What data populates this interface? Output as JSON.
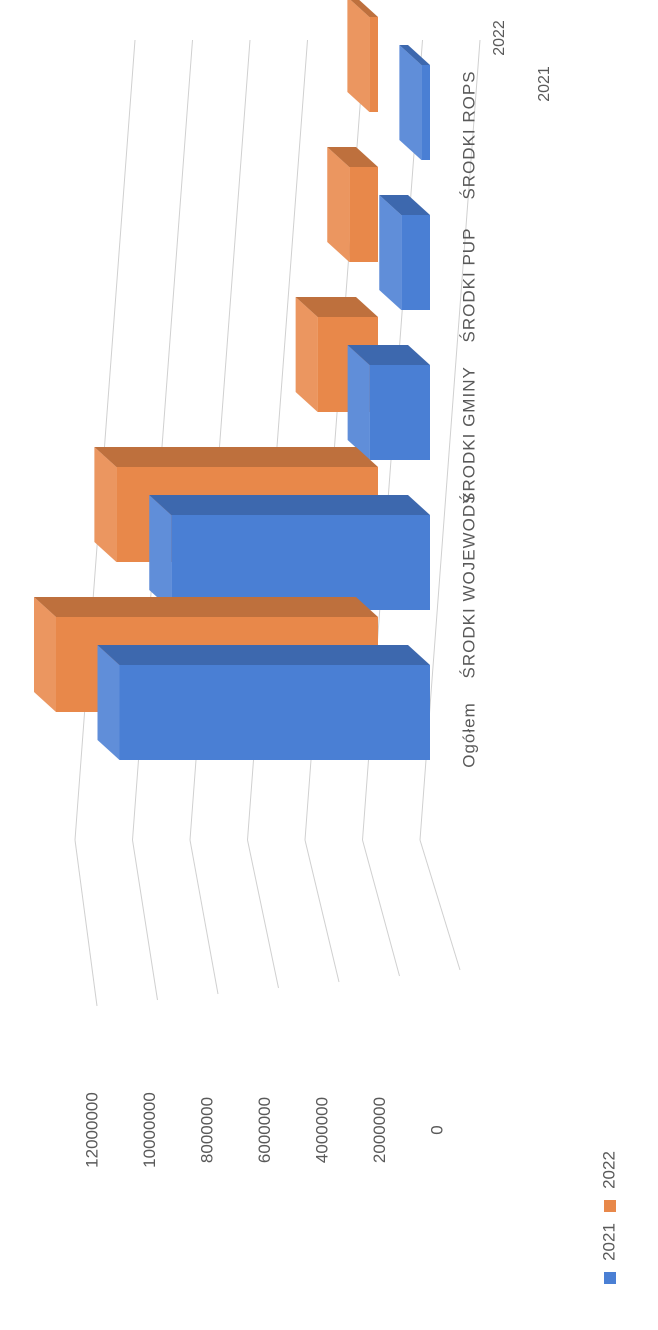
{
  "chart_data": {
    "type": "bar",
    "categories": [
      "Ogółem",
      "ŚRODKI WOJEWODY",
      "ŚRODKI GMINY",
      "ŚRODKI PUP",
      "ŚRODKI ROPS"
    ],
    "series": [
      {
        "name": "2021",
        "values": [
          10800000,
          9000000,
          2100000,
          1000000,
          300000
        ],
        "color": "#4a7fd4"
      },
      {
        "name": "2022",
        "values": [
          11200000,
          9100000,
          2100000,
          1000000,
          300000
        ],
        "color": "#e8884a"
      }
    ],
    "depth_labels": [
      "2022",
      "2021"
    ],
    "y_ticks": [
      "0",
      "2000000",
      "4000000",
      "6000000",
      "8000000",
      "10000000",
      "12000000"
    ],
    "ylim": [
      0,
      12000000
    ],
    "grid": true,
    "legend_position": "bottom",
    "legend_entries": [
      "2021",
      "2022"
    ],
    "chart_style": "3d-column",
    "orientation": "rotated-90-clockwise",
    "palette": {
      "blue": "#4a7fd4",
      "orange": "#e8884a",
      "text": "#595959",
      "grid": "#d0d0d0"
    }
  }
}
